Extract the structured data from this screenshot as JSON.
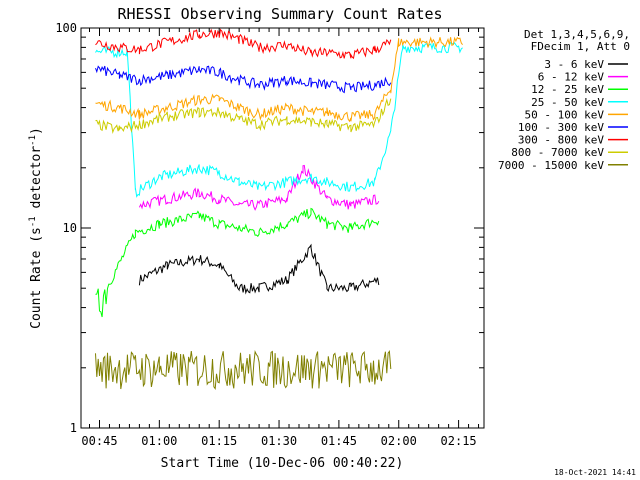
{
  "chart_data": {
    "type": "line",
    "title": "RHESSI Observing Summary Count Rates",
    "xlabel": "Start Time (10-Dec-06 00:40:22)",
    "ylabel": "Count Rate (s⁻¹ detector⁻¹)",
    "ylabel_parts": {
      "a": "Count Rate (s",
      "b": "-1",
      "c": " detector",
      "d": "-1",
      "e": ")"
    },
    "yscale": "log",
    "ylim": [
      1,
      100
    ],
    "xlim_minutes": [
      0.0,
      101.0
    ],
    "x_ticks": [
      {
        "label": "00:45",
        "min": 45
      },
      {
        "label": "01:00",
        "min": 60
      },
      {
        "label": "01:15",
        "min": 75
      },
      {
        "label": "01:30",
        "min": 90
      },
      {
        "label": "01:45",
        "min": 105
      },
      {
        "label": "02:00",
        "min": 120
      },
      {
        "label": "02:15",
        "min": 135
      }
    ],
    "y_ticks": [
      {
        "label": "1",
        "v": 1
      },
      {
        "label": "10",
        "v": 10
      },
      {
        "label": "100",
        "v": 100
      }
    ],
    "legend": {
      "placement": "right",
      "header": [
        "Det 1,3,4,5,6,9,",
        "FDecim 1, Att 0"
      ],
      "entries": [
        {
          "name": "3 - 6 keV",
          "color": "#000000"
        },
        {
          "name": "6 - 12 keV",
          "color": "#ff00ff"
        },
        {
          "name": "12 - 25 keV",
          "color": "#00ff00"
        },
        {
          "name": "25 - 50 keV",
          "color": "#00ffff"
        },
        {
          "name": "50 - 100 keV",
          "color": "#ffa500"
        },
        {
          "name": "100 - 300 keV",
          "color": "#0000ff"
        },
        {
          "name": "300 - 800 keV",
          "color": "#ff0000"
        },
        {
          "name": "800 - 7000 keV",
          "color": "#cccc00"
        },
        {
          "name": "7000 - 15000 keV",
          "color": "#808000"
        }
      ]
    },
    "series": [
      {
        "name": "3 - 6 keV",
        "color": "#000000",
        "values": [
          [
            55,
            5.5
          ],
          [
            62,
            6.5
          ],
          [
            70,
            7.0
          ],
          [
            75,
            6.5
          ],
          [
            80,
            5.0
          ],
          [
            85,
            5.0
          ],
          [
            92,
            5.5
          ],
          [
            98,
            8.0
          ],
          [
            102,
            5.0
          ],
          [
            108,
            5.0
          ],
          [
            115,
            5.5
          ]
        ]
      },
      {
        "name": "6 - 12 keV",
        "color": "#ff00ff",
        "values": [
          [
            55,
            13
          ],
          [
            62,
            14
          ],
          [
            70,
            15
          ],
          [
            75,
            14
          ],
          [
            80,
            13
          ],
          [
            85,
            13
          ],
          [
            92,
            14
          ],
          [
            96,
            20
          ],
          [
            102,
            14
          ],
          [
            108,
            13
          ],
          [
            115,
            14
          ]
        ]
      },
      {
        "name": "12 - 25 keV",
        "color": "#00ff00",
        "values": [
          [
            44,
            3.9
          ],
          [
            54,
            9.5
          ],
          [
            60,
            10.5
          ],
          [
            70,
            11.5
          ],
          [
            75,
            10.5
          ],
          [
            80,
            10
          ],
          [
            85,
            9.5
          ],
          [
            92,
            10.5
          ],
          [
            98,
            12
          ],
          [
            102,
            10.5
          ],
          [
            108,
            10
          ],
          [
            115,
            11
          ]
        ]
      },
      {
        "name": "25 - 50 keV",
        "color": "#00ffff",
        "values": [
          [
            44,
            76
          ],
          [
            52,
            76
          ],
          [
            54,
            15
          ],
          [
            60,
            18
          ],
          [
            70,
            20
          ],
          [
            75,
            19
          ],
          [
            80,
            17
          ],
          [
            85,
            16
          ],
          [
            92,
            17
          ],
          [
            98,
            18
          ],
          [
            102,
            17
          ],
          [
            108,
            16
          ],
          [
            114,
            17
          ],
          [
            118,
            30
          ],
          [
            121,
            80
          ],
          [
            136,
            80
          ]
        ]
      },
      {
        "name": "50 - 100 keV",
        "color": "#ffa500",
        "values": [
          [
            44,
            42
          ],
          [
            50,
            40
          ],
          [
            55,
            37
          ],
          [
            62,
            40
          ],
          [
            70,
            44
          ],
          [
            75,
            44
          ],
          [
            80,
            40
          ],
          [
            85,
            37
          ],
          [
            92,
            40
          ],
          [
            98,
            38
          ],
          [
            102,
            38
          ],
          [
            108,
            36
          ],
          [
            114,
            37
          ],
          [
            118,
            50
          ],
          [
            120,
            85
          ],
          [
            136,
            85
          ]
        ]
      },
      {
        "name": "100 - 300 keV",
        "color": "#0000ff",
        "values": [
          [
            44,
            63
          ],
          [
            50,
            58
          ],
          [
            55,
            55
          ],
          [
            62,
            58
          ],
          [
            70,
            62
          ],
          [
            75,
            60
          ],
          [
            80,
            55
          ],
          [
            85,
            52
          ],
          [
            92,
            55
          ],
          [
            98,
            53
          ],
          [
            102,
            52
          ],
          [
            108,
            50
          ],
          [
            114,
            52
          ],
          [
            118,
            55
          ]
        ]
      },
      {
        "name": "300 - 800 keV",
        "color": "#ff0000",
        "values": [
          [
            44,
            85
          ],
          [
            50,
            80
          ],
          [
            55,
            78
          ],
          [
            62,
            85
          ],
          [
            70,
            93
          ],
          [
            75,
            95
          ],
          [
            80,
            88
          ],
          [
            85,
            80
          ],
          [
            92,
            82
          ],
          [
            98,
            75
          ],
          [
            102,
            75
          ],
          [
            108,
            73
          ],
          [
            114,
            78
          ],
          [
            118,
            85
          ]
        ]
      },
      {
        "name": "800 - 7000 keV",
        "color": "#cccc00",
        "values": [
          [
            44,
            33
          ],
          [
            50,
            31
          ],
          [
            55,
            33
          ],
          [
            62,
            36
          ],
          [
            70,
            38
          ],
          [
            75,
            38
          ],
          [
            80,
            35
          ],
          [
            85,
            33
          ],
          [
            92,
            35
          ],
          [
            98,
            34
          ],
          [
            102,
            33
          ],
          [
            108,
            32
          ],
          [
            114,
            33
          ],
          [
            118,
            45
          ]
        ]
      },
      {
        "name": "7000 - 15000 keV",
        "color": "#808000",
        "values": [
          [
            44,
            2.0
          ],
          [
            60,
            2.0
          ],
          [
            80,
            2.0
          ],
          [
            100,
            2.0
          ],
          [
            118,
            2.0
          ]
        ]
      }
    ]
  },
  "footer": {
    "timestamp": "18-Oct-2021 14:41"
  }
}
